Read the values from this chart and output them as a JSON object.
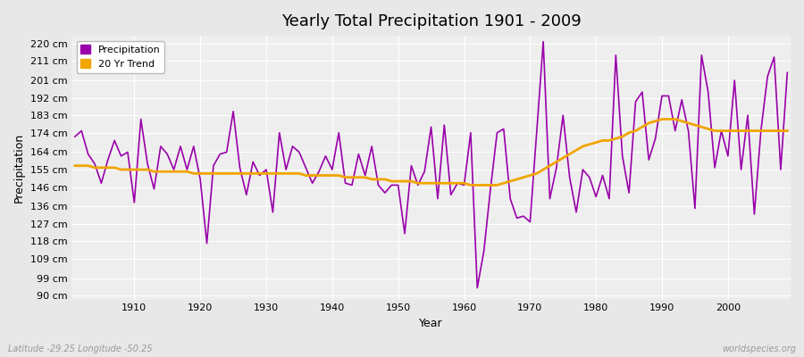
{
  "title": "Yearly Total Precipitation 1901 - 2009",
  "xlabel": "Year",
  "ylabel": "Precipitation",
  "x_start": 1901,
  "x_end": 2009,
  "yticks": [
    90,
    99,
    109,
    118,
    127,
    136,
    146,
    155,
    164,
    174,
    183,
    192,
    201,
    211,
    220
  ],
  "ylim": [
    88,
    224
  ],
  "xlim": [
    1900.5,
    2009.5
  ],
  "precipitation_color": "#9900aa",
  "trend_color": "#f0a500",
  "bg_color": "#e8e8e8",
  "plot_bg_color": "#eeeeee",
  "grid_color": "#ffffff",
  "precipitation_label": "Precipitation",
  "trend_label": "20 Yr Trend",
  "footer_left": "Latitude -29.25 Longitude -50.25",
  "footer_right": "worldspecies.org",
  "precipitation": [
    172,
    175,
    163,
    158,
    148,
    160,
    170,
    162,
    164,
    138,
    181,
    158,
    145,
    167,
    163,
    155,
    167,
    155,
    167,
    150,
    117,
    157,
    163,
    164,
    185,
    156,
    142,
    159,
    152,
    155,
    133,
    174,
    155,
    167,
    164,
    156,
    148,
    154,
    162,
    155,
    174,
    148,
    147,
    163,
    152,
    167,
    147,
    143,
    147,
    147,
    122,
    157,
    147,
    154,
    177,
    140,
    178,
    142,
    148,
    147,
    174,
    94,
    113,
    145,
    174,
    176,
    140,
    130,
    131,
    128,
    174,
    221,
    140,
    156,
    183,
    151,
    133,
    155,
    151,
    141,
    152,
    140,
    214,
    162,
    143,
    190,
    195,
    160,
    171,
    193,
    193,
    175,
    191,
    175,
    135,
    214,
    195,
    156,
    175,
    162,
    201,
    155,
    183,
    132,
    175,
    203,
    213,
    155,
    205
  ],
  "trend": [
    157,
    157,
    157,
    156,
    156,
    156,
    156,
    155,
    155,
    155,
    155,
    155,
    154,
    154,
    154,
    154,
    154,
    154,
    153,
    153,
    153,
    153,
    153,
    153,
    153,
    153,
    153,
    153,
    153,
    153,
    153,
    153,
    153,
    153,
    153,
    152,
    152,
    152,
    152,
    152,
    152,
    151,
    151,
    151,
    151,
    150,
    150,
    150,
    149,
    149,
    149,
    149,
    148,
    148,
    148,
    148,
    148,
    148,
    148,
    148,
    147,
    147,
    147,
    147,
    147,
    148,
    149,
    150,
    151,
    152,
    153,
    155,
    157,
    159,
    161,
    163,
    165,
    167,
    168,
    169,
    170,
    170,
    171,
    172,
    174,
    175,
    177,
    179,
    180,
    181,
    181,
    181,
    180,
    179,
    178,
    177,
    176,
    175,
    175,
    175,
    175,
    175,
    175,
    175,
    175,
    175,
    175,
    175,
    175
  ]
}
